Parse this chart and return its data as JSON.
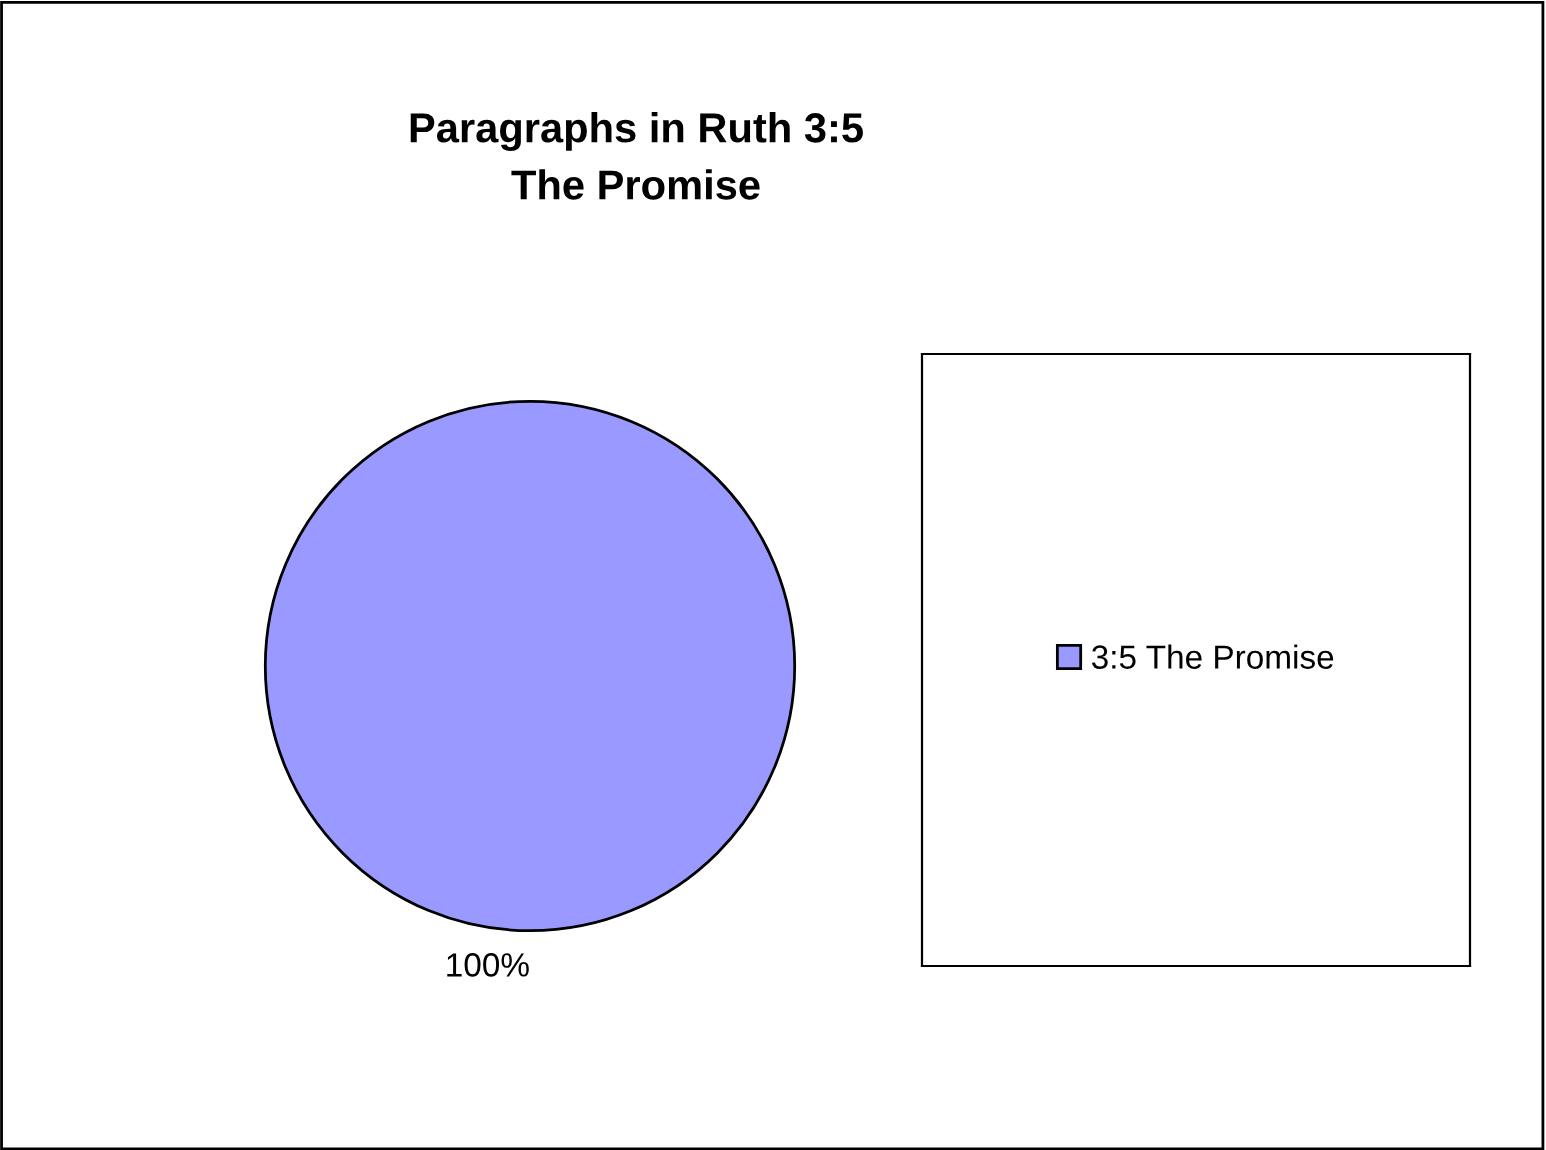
{
  "chart_data": {
    "type": "pie",
    "title": "Paragraphs in Ruth 3:5\nThe Promise",
    "categories": [
      "3:5 The Promise"
    ],
    "values": [
      100
    ],
    "colors": [
      "#9999ff"
    ],
    "value_labels": [
      "100%"
    ],
    "legend": "right"
  }
}
